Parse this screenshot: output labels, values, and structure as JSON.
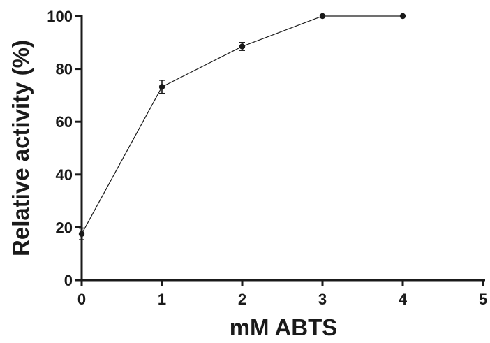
{
  "chart_data": {
    "type": "line",
    "xlabel": "mM ABTS",
    "ylabel": "Relative activity (%)",
    "xlim": [
      0,
      5
    ],
    "ylim": [
      0,
      100
    ],
    "x_ticks": [
      "0",
      "1",
      "2",
      "3",
      "4",
      "5"
    ],
    "y_ticks": [
      "0",
      "20",
      "40",
      "60",
      "80",
      "100"
    ],
    "grid": false,
    "series": [
      {
        "x": [
          0,
          1,
          2,
          3,
          4
        ],
        "values": [
          17.5,
          73.2,
          88.5,
          100,
          100
        ],
        "error": [
          2.2,
          2.5,
          1.5,
          0,
          0
        ],
        "color": "#1a1a1a",
        "marker": "circle"
      }
    ]
  }
}
